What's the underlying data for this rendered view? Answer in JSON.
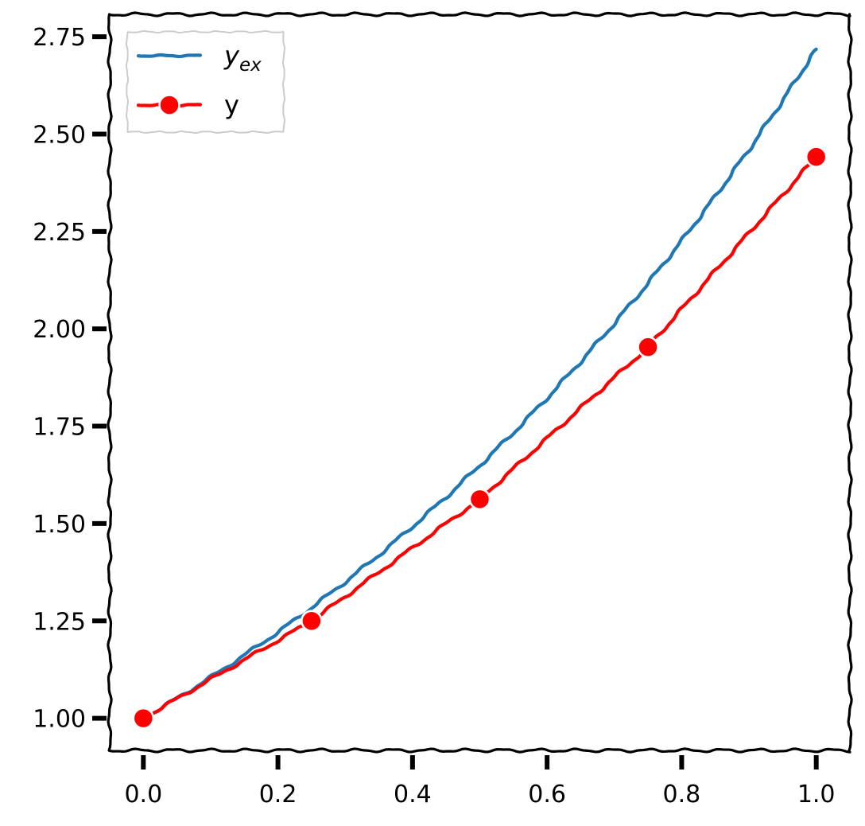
{
  "chart_data": {
    "type": "line",
    "title": "",
    "xlabel": "",
    "ylabel": "",
    "xlim": [
      -0.05,
      1.05
    ],
    "ylim": [
      0.9175,
      2.8075
    ],
    "xticks": [
      0.0,
      0.2,
      0.4,
      0.6,
      0.8,
      1.0
    ],
    "xtick_labels": [
      "0.0",
      "0.2",
      "0.4",
      "0.6",
      "0.8",
      "1.0"
    ],
    "yticks": [
      1.0,
      1.25,
      1.5,
      1.75,
      2.0,
      2.25,
      2.5,
      2.75
    ],
    "ytick_labels": [
      "1.00",
      "1.25",
      "1.50",
      "1.75",
      "2.00",
      "2.25",
      "2.50",
      "2.75"
    ],
    "grid": false,
    "legend_position": "top-left",
    "series": [
      {
        "name": "y_ex",
        "legend_main": "y",
        "legend_sub": "ex",
        "style": "solid",
        "marker": "none",
        "color": "#1f77b4",
        "x": [
          0.0,
          0.05,
          0.1,
          0.15,
          0.2,
          0.25,
          0.3,
          0.35,
          0.4,
          0.45,
          0.5,
          0.55,
          0.6,
          0.65,
          0.7,
          0.75,
          0.8,
          0.85,
          0.9,
          0.95,
          1.0
        ],
        "y": [
          1.0,
          1.051,
          1.105,
          1.162,
          1.221,
          1.284,
          1.35,
          1.419,
          1.492,
          1.568,
          1.649,
          1.733,
          1.822,
          1.916,
          2.014,
          2.117,
          2.226,
          2.34,
          2.46,
          2.586,
          2.718
        ]
      },
      {
        "name": "y",
        "legend_main": "y",
        "legend_sub": "",
        "style": "solid",
        "marker": "circle",
        "color": "#ff0000",
        "x": [
          0.0,
          0.25,
          0.5,
          0.75,
          1.0
        ],
        "y": [
          1.0,
          1.25,
          1.5625,
          1.9531,
          2.4414
        ]
      }
    ]
  }
}
